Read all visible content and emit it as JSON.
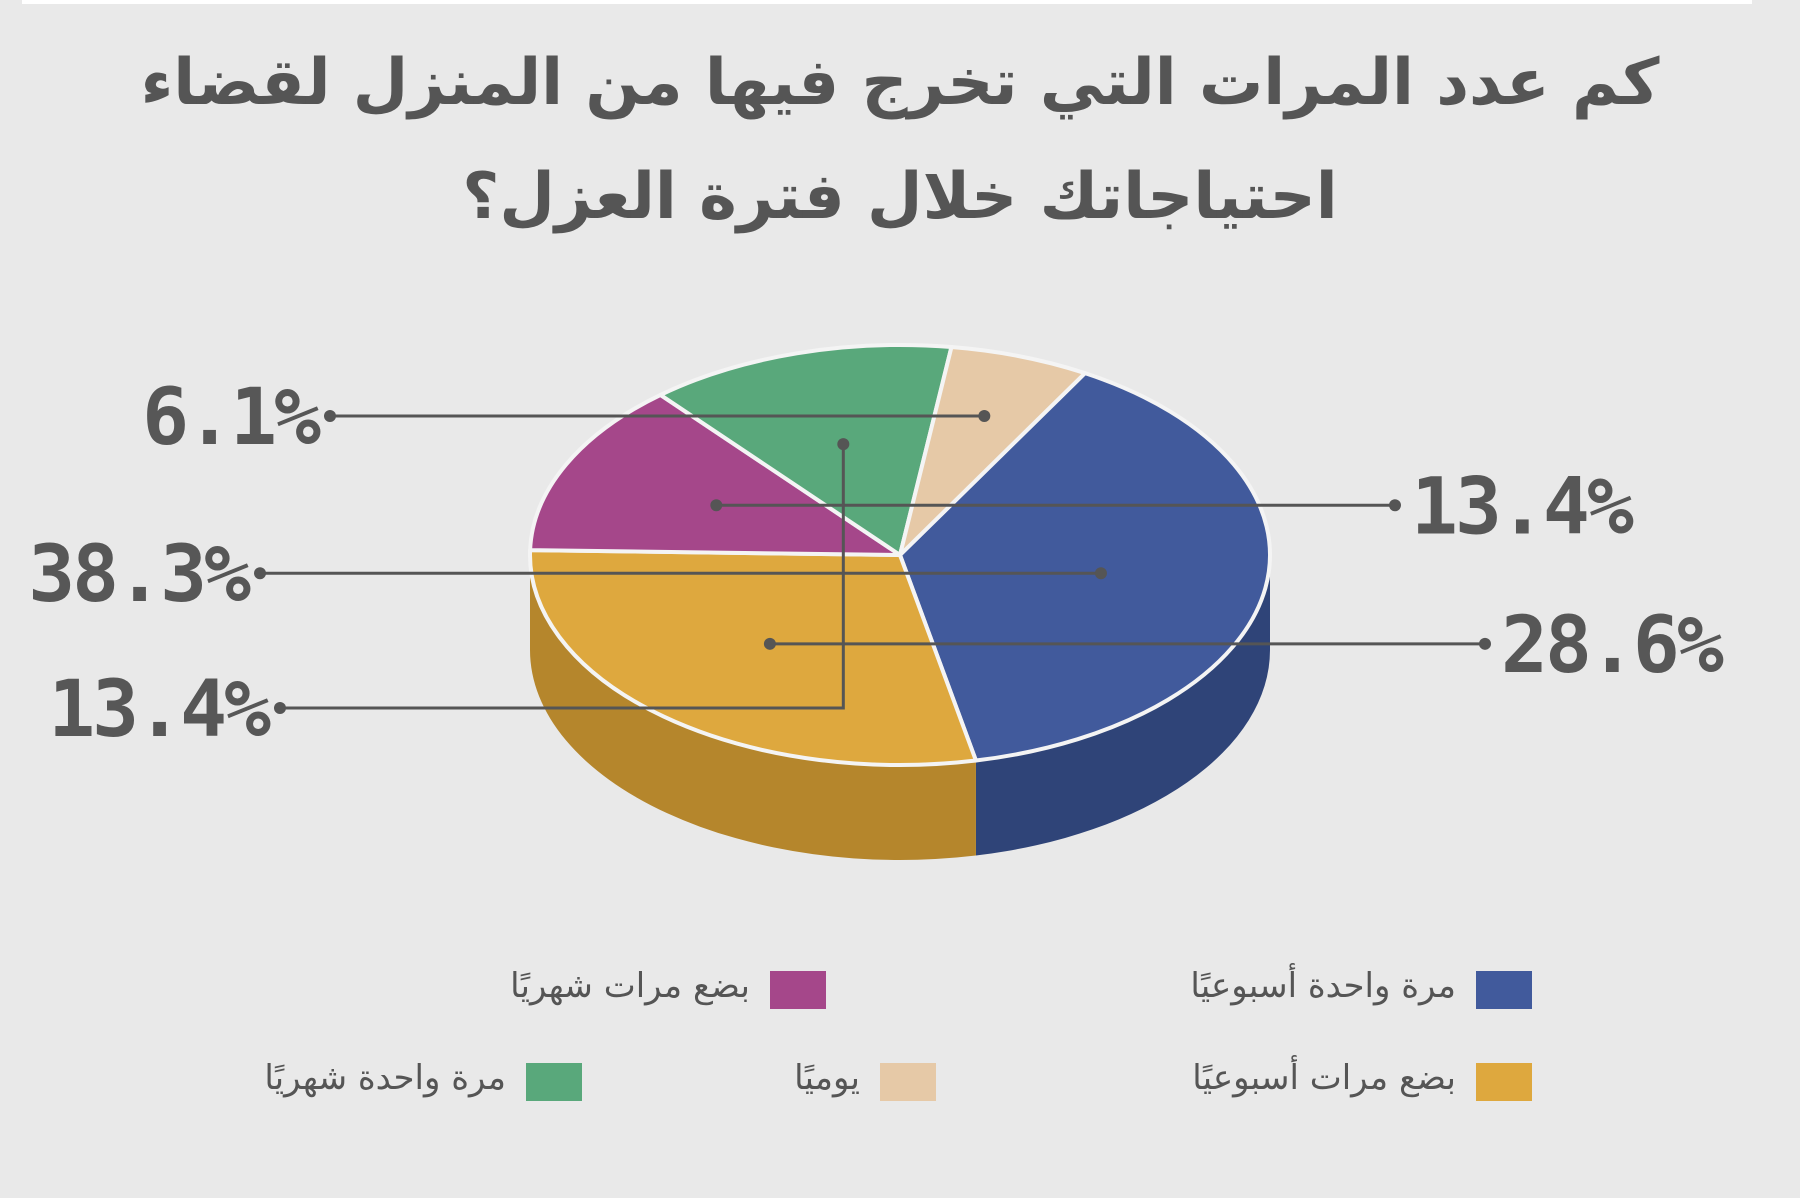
{
  "title_lines": [
    "كم عدد المرات التي تخرج فيها من المنزل لقضاء",
    "احتياجاتك خلال فترة العزل؟"
  ],
  "chart_data": {
    "type": "pie",
    "title": "كم عدد المرات التي تخرج فيها من المنزل لقضاء احتياجاتك خلال فترة العزل؟",
    "slices": [
      {
        "label": "مرة واحدة أسبوعيًا",
        "value": 38.3,
        "value_label": "38.3%",
        "color": "#415a9c",
        "side": "#2f4478"
      },
      {
        "label": "بضع مرات أسبوعيًا",
        "value": 28.6,
        "value_label": "28.6%",
        "color": "#dea83e",
        "side": "#b5862c"
      },
      {
        "label": "بضع مرات شهريًا",
        "value": 13.4,
        "value_label": "13.4%",
        "color": "#a5478a",
        "side": "#86376f"
      },
      {
        "label": "مرة واحدة شهريًا",
        "value": 13.4,
        "value_label": "13.4%",
        "color": "#59a87b",
        "side": "#43845f"
      },
      {
        "label": "يوميًا",
        "value": 6.1,
        "value_label": "6.1%",
        "color": "#e6c9a7",
        "side": "#a48c78"
      }
    ],
    "legend_placement": "bottom"
  }
}
